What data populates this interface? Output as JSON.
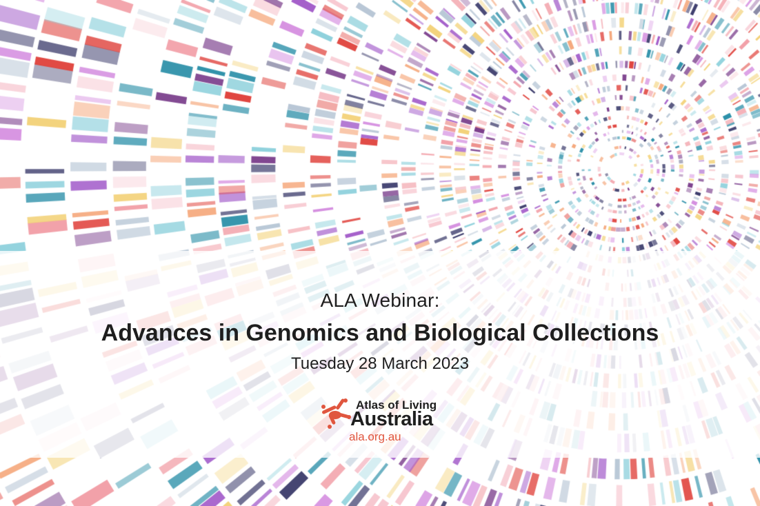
{
  "banner": {
    "kicker": "ALA Webinar:",
    "title": "Advances in Genomics and Biological Collections",
    "date": "Tuesday 28 March 2023"
  },
  "logo": {
    "line1": "Atlas of Living",
    "line2": "Australia",
    "url": "ala.org.au",
    "brand_color": "#e0563f",
    "icon": "ala-bird-logo-icon"
  },
  "background": {
    "description_icon": "radial-genome-barcode-pattern",
    "palette": [
      "#e0453f",
      "#f2a0a8",
      "#7b3f8c",
      "#a25bc9",
      "#d58fe0",
      "#2b8fa8",
      "#8fd1dc",
      "#f3d27a",
      "#f5a77a",
      "#b8c7d6",
      "#3a3a6a",
      "#f7c6cf"
    ]
  }
}
